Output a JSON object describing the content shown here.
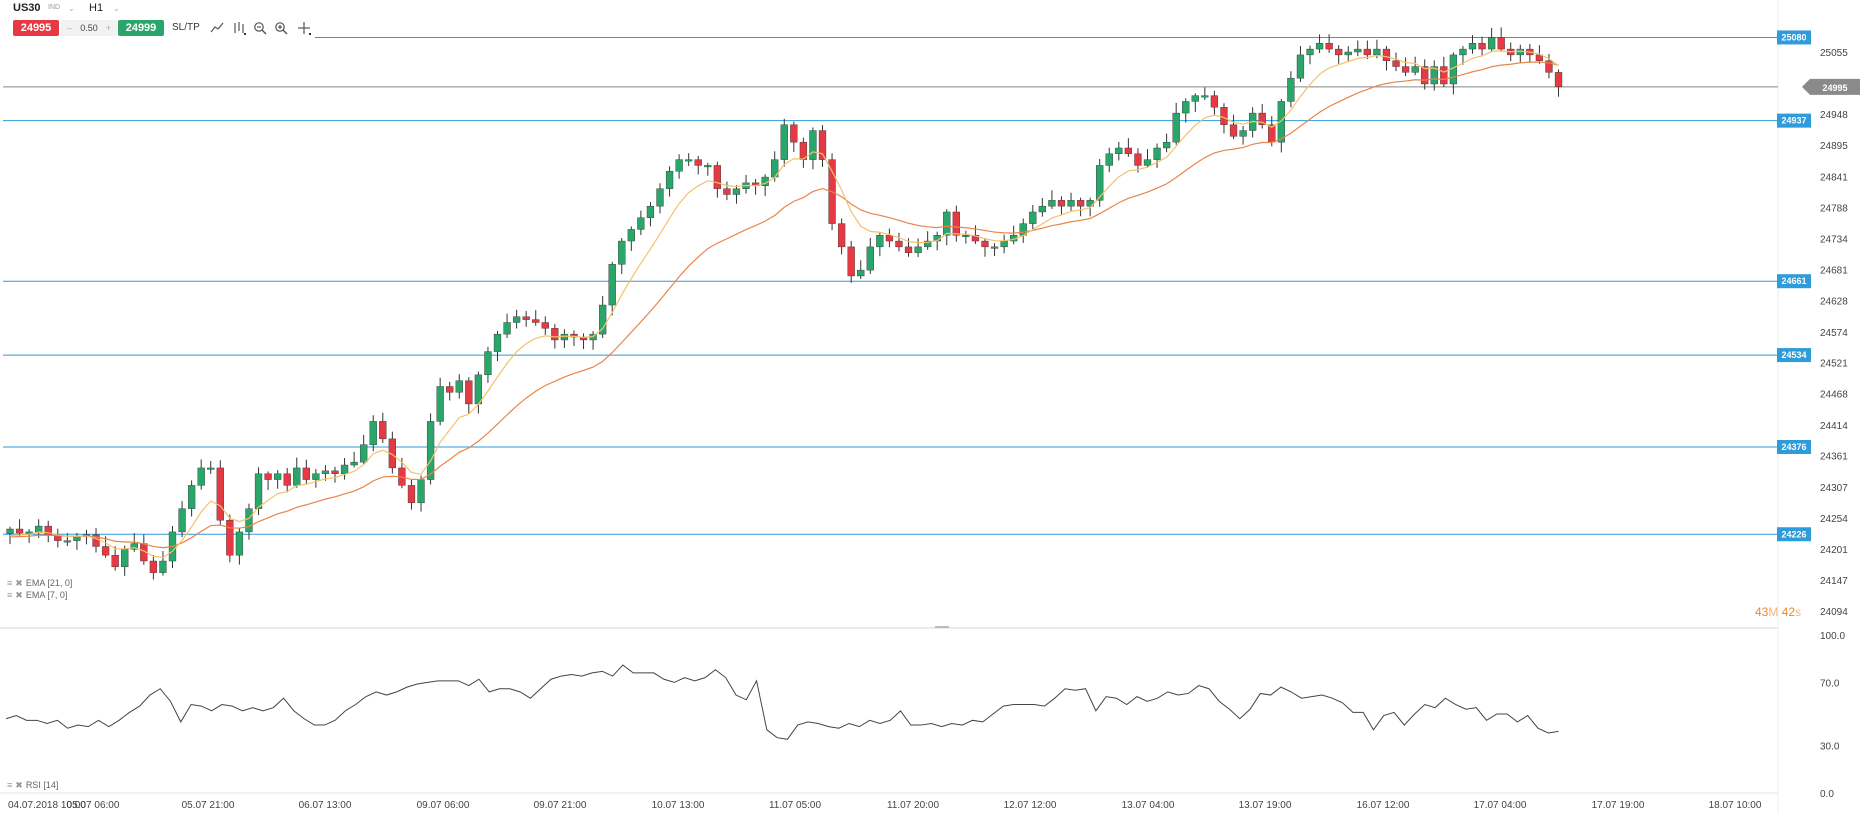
{
  "toolbar": {
    "symbol": "US30",
    "symbol_sub": "IND",
    "timeframe": "H1",
    "sell_price": "24995",
    "buy_price": "24999",
    "spread": "0.50",
    "spread_minus": "–",
    "spread_plus": "+",
    "sltp_label": "SL/TP",
    "tools": [
      "trend-line-icon",
      "indicators-icon",
      "zoom-out-icon",
      "zoom-in-icon",
      "crosshair-icon"
    ]
  },
  "price_axis": {
    "ticks": [
      "25055",
      "24948",
      "24895",
      "24841",
      "24788",
      "24734",
      "24681",
      "24628",
      "24574",
      "24521",
      "24468",
      "24414",
      "24361",
      "24307",
      "24254",
      "24201",
      "24147",
      "24094"
    ],
    "current_price": "24995"
  },
  "levels": [
    "25080",
    "24937",
    "24661",
    "24534",
    "24376",
    "24226"
  ],
  "time_axis": [
    "04.07.2018 10:00",
    "05.07 06:00",
    "05.07 21:00",
    "06.07 13:00",
    "09.07 06:00",
    "09.07 21:00",
    "10.07 13:00",
    "11.07 05:00",
    "11.07 20:00",
    "12.07 12:00",
    "13.07 04:00",
    "13.07 19:00",
    "16.07 12:00",
    "17.07 04:00",
    "17.07 19:00",
    "18.07 10:00"
  ],
  "indicators": {
    "ema_21": "EMA [21, 0]",
    "ema_7": "EMA [7, 0]",
    "rsi": "RSI [14]"
  },
  "rsi_axis": [
    "100.0",
    "70.0",
    "30.0",
    "0.0"
  ],
  "timer": {
    "minutes": "43",
    "m_unit": "M",
    "seconds": "42",
    "s_unit": "s"
  },
  "colors": {
    "bull": "#2aa66a",
    "bear": "#e53944",
    "level": "#2e9bda",
    "ema21": "#e8854a",
    "ema7": "#f3c26b",
    "rsi": "#444444"
  },
  "chart_data": {
    "type": "candlestick",
    "candles_close": [
      24235,
      24228,
      24230,
      24240,
      24225,
      24215,
      24215,
      24222,
      24225,
      24205,
      24190,
      24170,
      24200,
      24210,
      24180,
      24160,
      24180,
      24230,
      24270,
      24310,
      24340,
      24340,
      24250,
      24190,
      24230,
      24270,
      24330,
      24320,
      24330,
      24310,
      24340,
      24320,
      24330,
      24335,
      24330,
      24345,
      24350,
      24380,
      24420,
      24390,
      24340,
      24310,
      24280,
      24320,
      24420,
      24480,
      24470,
      24490,
      24450,
      24500,
      24540,
      24570,
      24590,
      24600,
      24595,
      24590,
      24580,
      24560,
      24570,
      24565,
      24560,
      24570,
      24620,
      24690,
      24730,
      24750,
      24770,
      24790,
      24820,
      24850,
      24870,
      24870,
      24860,
      24860,
      24820,
      24810,
      24820,
      24830,
      24825,
      24840,
      24870,
      24930,
      24900,
      24870,
      24920,
      24870,
      24760,
      24720,
      24670,
      24680,
      24720,
      24740,
      24730,
      24720,
      24710,
      24720,
      24730,
      24740,
      24780,
      24740,
      24740,
      24730,
      24720,
      24720,
      24730,
      24740,
      24760,
      24780,
      24790,
      24800,
      24790,
      24800,
      24790,
      24800,
      24860,
      24880,
      24890,
      24880,
      24860,
      24870,
      24890,
      24900,
      24950,
      24970,
      24980,
      24980,
      24960,
      24930,
      24910,
      24920,
      24950,
      24930,
      24900,
      24970,
      25010,
      25050,
      25060,
      25070,
      25060,
      25050,
      25055,
      25060,
      25050,
      25060,
      25040,
      25030,
      25020,
      25030,
      25000,
      25030,
      25000,
      25050,
      25060,
      25070,
      25060,
      25080,
      25060,
      25050,
      25060,
      25050,
      25040,
      25020,
      24995
    ],
    "ema7_start": 24220,
    "ema21_start": 24220,
    "rsi_values": [
      47,
      49,
      46,
      46,
      44,
      46,
      41,
      43,
      42,
      46,
      42,
      46,
      51,
      55,
      62,
      66,
      58,
      45,
      56,
      55,
      52,
      56,
      55,
      52,
      54,
      52,
      54,
      60,
      52,
      47,
      43,
      43,
      46,
      52,
      56,
      61,
      64,
      62,
      64,
      67,
      69,
      70,
      71,
      71,
      71,
      68,
      72,
      64,
      66,
      66,
      64,
      60,
      66,
      72,
      74,
      75,
      74,
      76,
      77,
      74,
      81,
      76,
      76,
      76,
      72,
      70,
      73,
      71,
      73,
      78,
      73,
      62,
      59,
      71,
      40,
      35,
      34,
      43,
      45,
      44,
      42,
      41,
      44,
      42,
      46,
      44,
      46,
      52,
      43,
      43,
      44,
      42,
      44,
      43,
      46,
      45,
      50,
      55,
      56,
      56,
      56,
      55,
      60,
      66,
      65,
      66,
      52,
      61,
      60,
      56,
      61,
      58,
      60,
      64,
      62,
      63,
      68,
      66,
      58,
      53,
      47,
      53,
      63,
      62,
      67,
      64,
      60,
      61,
      62,
      60,
      57,
      51,
      51,
      40,
      49,
      51,
      43,
      50,
      56,
      54,
      60,
      56,
      53,
      54,
      46,
      50,
      50,
      45,
      49,
      41,
      38,
      39
    ],
    "price_range": [
      24070,
      25110
    ],
    "rsi_range": [
      0,
      100
    ]
  }
}
